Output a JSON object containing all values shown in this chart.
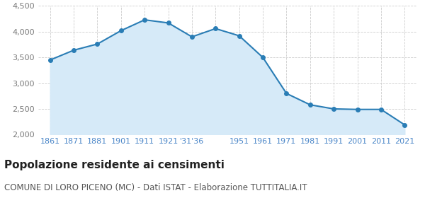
{
  "years": [
    1861,
    1871,
    1881,
    1901,
    1911,
    1921,
    1931,
    1936,
    1951,
    1961,
    1971,
    1981,
    1991,
    2001,
    2011,
    2021
  ],
  "population": [
    3450,
    3640,
    3760,
    4020,
    4230,
    4170,
    3900,
    4060,
    3920,
    3500,
    2800,
    2580,
    2500,
    2490,
    2490,
    2190
  ],
  "x_labels": [
    "1861",
    "1871",
    "1881",
    "1901",
    "1911",
    "1921",
    "'31'36",
    "1951",
    "1961",
    "1971",
    "1981",
    "1991",
    "2001",
    "2011",
    "2021"
  ],
  "line_color": "#2a7db5",
  "fill_color": "#d6eaf8",
  "marker_color": "#2a7db5",
  "background_color": "#ffffff",
  "grid_color": "#cccccc",
  "title": "Popolazione residente ai censimenti",
  "subtitle": "COMUNE DI LORO PICENO (MC) - Dati ISTAT - Elaborazione TUTTITALIA.IT",
  "ylim": [
    2000,
    4500
  ],
  "yticks": [
    2000,
    2500,
    3000,
    3500,
    4000,
    4500
  ],
  "title_fontsize": 11,
  "subtitle_fontsize": 8.5,
  "label_color": "#4a86c8",
  "tick_color": "#777777",
  "tick_fontsize": 8
}
